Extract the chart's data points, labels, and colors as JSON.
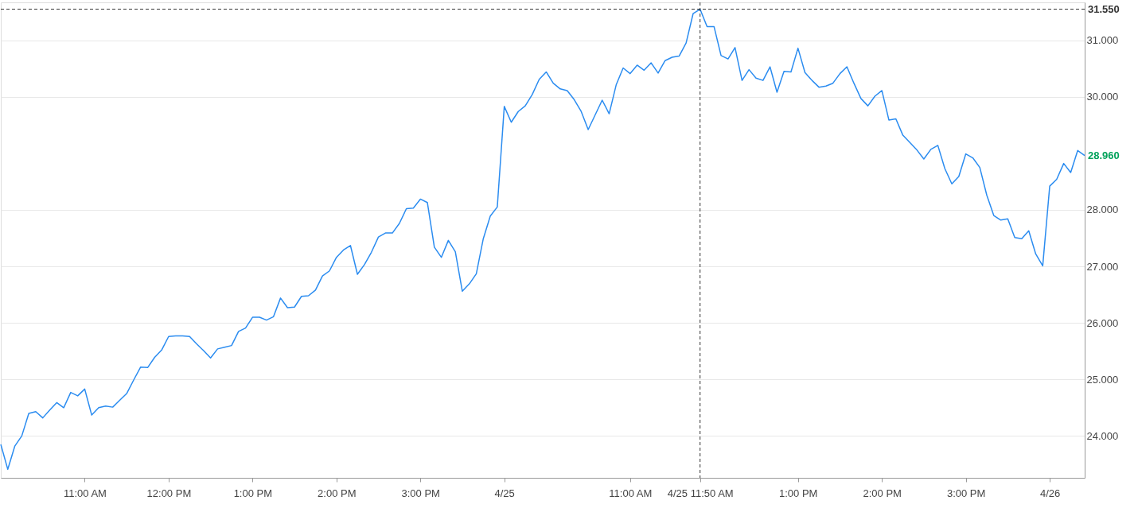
{
  "chart_data": {
    "type": "line",
    "categories": [
      null,
      null,
      null,
      null,
      null,
      null,
      null,
      null,
      null,
      null,
      null,
      null,
      "11:00 AM",
      null,
      null,
      null,
      null,
      null,
      null,
      null,
      null,
      null,
      null,
      null,
      "12:00 PM",
      null,
      null,
      null,
      null,
      null,
      null,
      null,
      null,
      null,
      null,
      null,
      "1:00 PM",
      null,
      null,
      null,
      null,
      null,
      null,
      null,
      null,
      null,
      null,
      null,
      "2:00 PM",
      null,
      null,
      null,
      null,
      null,
      null,
      null,
      null,
      null,
      null,
      null,
      "3:00 PM",
      null,
      null,
      null,
      null,
      null,
      null,
      null,
      null,
      null,
      null,
      null,
      "4/25",
      null,
      null,
      null,
      null,
      null,
      null,
      null,
      null,
      null,
      null,
      null,
      null,
      null,
      null,
      null,
      null,
      null,
      "11:00 AM",
      null,
      null,
      null,
      null,
      null,
      null,
      null,
      null,
      null,
      "4/25 11:50 AM",
      null,
      null,
      null,
      null,
      null,
      null,
      null,
      null,
      null,
      null,
      null,
      null,
      null,
      "1:00 PM",
      null,
      null,
      null,
      null,
      null,
      null,
      null,
      null,
      null,
      null,
      null,
      "2:00 PM",
      null,
      null,
      null,
      null,
      null,
      null,
      null,
      null,
      null,
      null,
      null,
      "3:00 PM",
      null,
      null,
      null,
      null,
      null,
      null,
      null,
      null,
      null,
      null,
      null,
      "4/26",
      null,
      null,
      null,
      null,
      null
    ],
    "series": [
      {
        "color": "#2b8cf0",
        "values": [
          23.85,
          23.41,
          23.82,
          24.0,
          24.4,
          24.43,
          24.32,
          24.46,
          24.59,
          24.5,
          24.77,
          24.71,
          24.83,
          24.37,
          24.5,
          24.53,
          24.51,
          24.63,
          24.75,
          24.99,
          25.22,
          25.21,
          25.39,
          25.52,
          25.76,
          25.77,
          25.77,
          25.76,
          25.63,
          25.51,
          25.38,
          25.54,
          25.57,
          25.6,
          25.85,
          25.91,
          26.1,
          26.1,
          26.05,
          26.11,
          26.44,
          26.27,
          26.28,
          26.47,
          26.48,
          26.58,
          26.83,
          26.92,
          27.16,
          27.29,
          27.37,
          26.86,
          27.03,
          27.25,
          27.52,
          27.59,
          27.59,
          27.76,
          28.02,
          28.03,
          28.19,
          28.13,
          27.34,
          27.16,
          27.46,
          27.26,
          26.56,
          26.69,
          26.87,
          27.49,
          27.89,
          28.05,
          29.83,
          29.55,
          29.74,
          29.84,
          30.04,
          30.31,
          30.44,
          30.24,
          30.14,
          30.11,
          29.95,
          29.74,
          29.42,
          29.68,
          29.94,
          29.7,
          30.21,
          30.51,
          30.41,
          30.56,
          30.47,
          30.6,
          30.42,
          30.64,
          30.7,
          30.72,
          30.95,
          31.47,
          31.55,
          31.24,
          31.24,
          30.73,
          30.67,
          30.87,
          30.29,
          30.48,
          30.33,
          30.29,
          30.53,
          30.08,
          30.45,
          30.44,
          30.86,
          30.43,
          30.29,
          30.17,
          30.19,
          30.24,
          30.41,
          30.53,
          30.24,
          29.97,
          29.84,
          30.01,
          30.11,
          29.59,
          29.61,
          29.32,
          29.19,
          29.06,
          28.9,
          29.07,
          29.14,
          28.73,
          28.46,
          28.59,
          28.99,
          28.92,
          28.75,
          28.26,
          27.9,
          27.82,
          27.84,
          27.51,
          27.49,
          27.63,
          27.22,
          27.01,
          28.42,
          28.54,
          28.82,
          28.66,
          29.05,
          28.96
        ]
      }
    ],
    "ylim": [
      23.26,
      31.67
    ],
    "yticks": [
      {
        "value": 24,
        "label": "24.000"
      },
      {
        "value": 25,
        "label": "25.000"
      },
      {
        "value": 26,
        "label": "26.000"
      },
      {
        "value": 27,
        "label": "27.000"
      },
      {
        "value": 28,
        "label": "28.000"
      },
      {
        "value": 30,
        "label": "30.000"
      },
      {
        "value": 31,
        "label": "31.000"
      }
    ],
    "grid": "y",
    "ref_lines": [
      {
        "axis": "y",
        "value": 31.55,
        "label": "31.550",
        "color": "#333333",
        "line_style": "dashed"
      },
      {
        "axis": "x",
        "value": "4/25 11:50 AM",
        "color": "#333333",
        "line_style": "dashed"
      }
    ],
    "annotations": [
      "28.960"
    ]
  }
}
